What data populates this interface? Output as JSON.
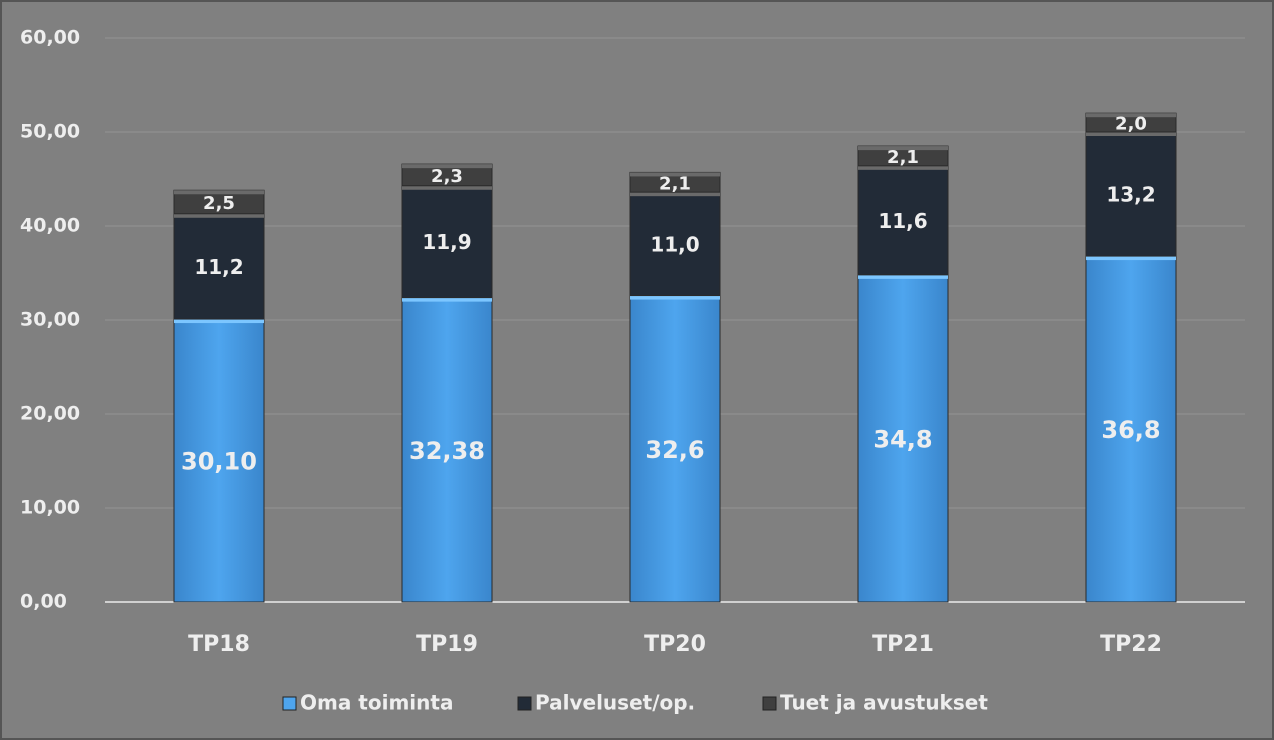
{
  "chart_data": {
    "type": "stacked_bar",
    "categories": [
      "TP18",
      "TP19",
      "TP20",
      "TP21",
      "TP22"
    ],
    "series": [
      {
        "name": "Oma toiminta",
        "color": "#4a9fe6",
        "values": [
          30.1,
          32.38,
          32.6,
          34.8,
          36.8
        ],
        "value_labels": [
          "30,10",
          "32,38",
          "32,6",
          "34,8",
          "36,8"
        ]
      },
      {
        "name": "Palveluset/op.",
        "color": "#222b37",
        "values": [
          11.2,
          11.9,
          11.0,
          11.6,
          13.2
        ],
        "value_labels": [
          "11,2",
          "11,9",
          "11,0",
          "11,6",
          "13,2"
        ]
      },
      {
        "name": "Tuet ja avustukset",
        "color": "#3f3f3f",
        "values": [
          2.5,
          2.3,
          2.1,
          2.1,
          2.0
        ],
        "value_labels": [
          "2,5",
          "2,3",
          "2,1",
          "2,1",
          "2,0"
        ]
      }
    ],
    "ylim": [
      0,
      60
    ],
    "yticks": [
      {
        "value": 0,
        "label": "0,00"
      },
      {
        "value": 10,
        "label": "10,00"
      },
      {
        "value": 20,
        "label": "20,00"
      },
      {
        "value": 30,
        "label": "30,00"
      },
      {
        "value": 40,
        "label": "40,00"
      },
      {
        "value": 50,
        "label": "50,00"
      },
      {
        "value": 60,
        "label": "60,00"
      }
    ],
    "grid": true,
    "legend": "bottom"
  }
}
